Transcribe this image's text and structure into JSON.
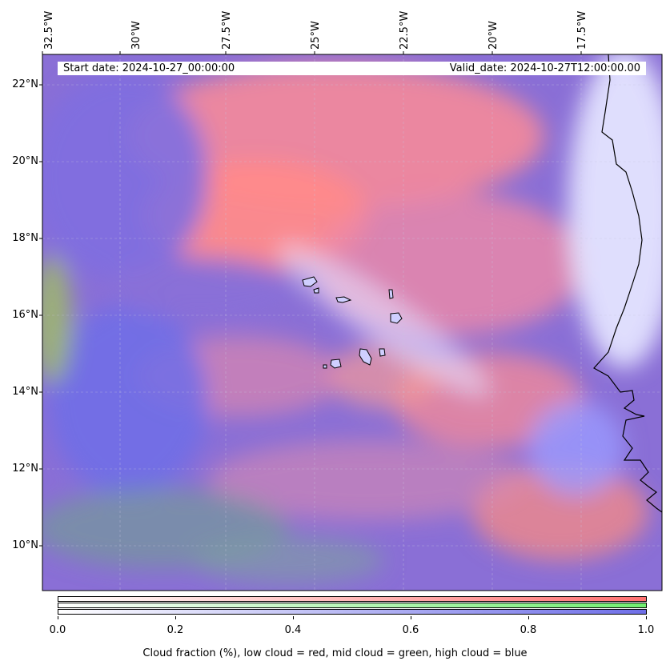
{
  "header": {
    "start_date": "Start date: 2024-10-27_00:00:00",
    "valid_date": "Valid_date: 2024-10-27T12:00:00.00"
  },
  "longitude_labels": [
    "32.5°W",
    "30°W",
    "27.5°W",
    "25°W",
    "22.5°W",
    "20°W",
    "17.5°W"
  ],
  "latitude_labels": [
    "22°N",
    "20°N",
    "18°N",
    "16°N",
    "14°N",
    "12°N",
    "10°N"
  ],
  "colorbar": {
    "ticks": [
      "0.0",
      "0.2",
      "0.4",
      "0.6",
      "0.8",
      "1.0"
    ],
    "label": "Cloud fraction (%), low cloud = red, mid cloud = green, high cloud = blue",
    "colors": {
      "low": "#ff7f7f",
      "mid": "#80f080",
      "high": "#7f7fff"
    }
  }
}
